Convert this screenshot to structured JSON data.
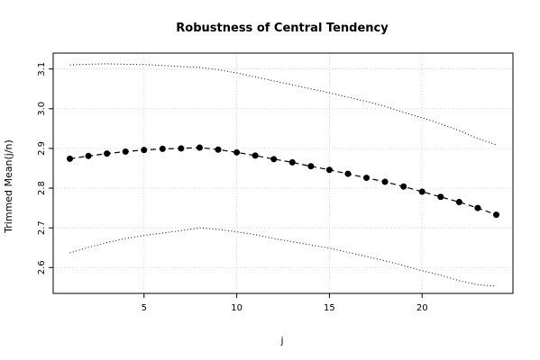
{
  "chart_data": {
    "type": "line",
    "title": "Robustness of Central Tendency",
    "xlabel": "j",
    "ylabel": "Trimmed Mean(j/n)",
    "xlim": [
      0.1,
      24.9
    ],
    "ylim": [
      2.535,
      3.14
    ],
    "x_ticks": [
      5,
      10,
      15,
      20
    ],
    "y_ticks": [
      2.6,
      2.7,
      2.8,
      2.9,
      3.0,
      3.1
    ],
    "grid": true,
    "legend": "none",
    "colors": {
      "line": "#000000",
      "grid": "#d9d9d9",
      "frame": "#000000"
    },
    "series": [
      {
        "role": "trimmed-mean",
        "style": "dashed-with-points",
        "x": [
          1,
          2,
          3,
          4,
          5,
          6,
          7,
          8,
          9,
          10,
          11,
          12,
          13,
          14,
          15,
          16,
          17,
          18,
          19,
          20,
          21,
          22,
          23,
          24
        ],
        "values": [
          2.874,
          2.881,
          2.887,
          2.892,
          2.896,
          2.899,
          2.9,
          2.902,
          2.897,
          2.89,
          2.882,
          2.873,
          2.865,
          2.855,
          2.846,
          2.836,
          2.826,
          2.816,
          2.804,
          2.791,
          2.778,
          2.765,
          2.75,
          2.733
        ]
      },
      {
        "role": "upper-band",
        "style": "dotted",
        "x": [
          1,
          2,
          3,
          4,
          5,
          6,
          7,
          8,
          9,
          10,
          11,
          12,
          13,
          14,
          15,
          16,
          17,
          18,
          19,
          20,
          21,
          22,
          23,
          24
        ],
        "values": [
          3.11,
          3.112,
          3.113,
          3.112,
          3.111,
          3.109,
          3.106,
          3.104,
          3.098,
          3.09,
          3.08,
          3.07,
          3.06,
          3.05,
          3.04,
          3.029,
          3.018,
          3.006,
          2.991,
          2.977,
          2.962,
          2.945,
          2.925,
          2.909
        ]
      },
      {
        "role": "lower-band",
        "style": "dotted",
        "x": [
          1,
          2,
          3,
          4,
          5,
          6,
          7,
          8,
          9,
          10,
          11,
          12,
          13,
          14,
          15,
          16,
          17,
          18,
          19,
          20,
          21,
          22,
          23,
          24
        ],
        "values": [
          2.637,
          2.651,
          2.663,
          2.673,
          2.681,
          2.687,
          2.693,
          2.7,
          2.696,
          2.69,
          2.683,
          2.673,
          2.665,
          2.657,
          2.649,
          2.638,
          2.628,
          2.617,
          2.605,
          2.592,
          2.581,
          2.567,
          2.557,
          2.553
        ]
      }
    ]
  }
}
